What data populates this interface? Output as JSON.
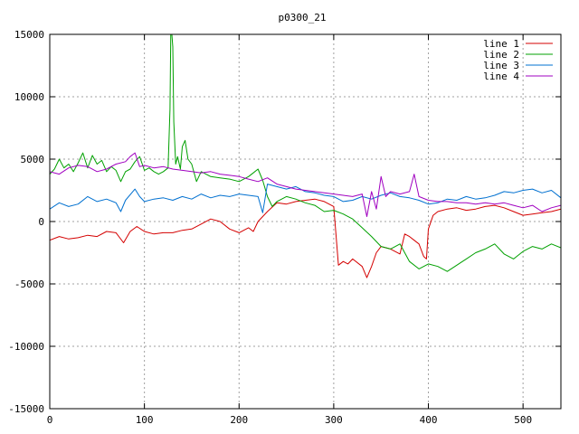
{
  "chart_data": {
    "type": "line",
    "title": "p0300_21",
    "xlabel": "",
    "ylabel": "",
    "xlim": [
      0,
      540
    ],
    "ylim": [
      -15000,
      15000
    ],
    "x_ticks": [
      "0",
      "100",
      "200",
      "300",
      "400",
      "500"
    ],
    "y_ticks": [
      "15000",
      "10000",
      "5000",
      "0",
      "-5000",
      "-10000",
      "-15000"
    ],
    "grid": true,
    "legend_position": "top-right",
    "series": [
      {
        "name": "line 1",
        "color": "#d40000",
        "x": [
          0,
          10,
          20,
          30,
          40,
          50,
          60,
          70,
          78,
          85,
          92,
          100,
          110,
          120,
          130,
          140,
          150,
          160,
          170,
          180,
          190,
          200,
          210,
          215,
          220,
          225,
          230,
          240,
          250,
          260,
          270,
          280,
          290,
          300,
          305,
          310,
          315,
          320,
          330,
          335,
          340,
          345,
          350,
          360,
          370,
          375,
          380,
          385,
          390,
          395,
          398,
          400,
          405,
          410,
          420,
          430,
          440,
          450,
          460,
          470,
          480,
          490,
          500,
          510,
          520,
          530,
          540
        ],
        "y": [
          -1500,
          -1200,
          -1400,
          -1300,
          -1100,
          -1200,
          -800,
          -900,
          -1700,
          -800,
          -400,
          -800,
          -1000,
          -900,
          -900,
          -700,
          -600,
          -200,
          200,
          0,
          -600,
          -900,
          -500,
          -800,
          0,
          400,
          800,
          1500,
          1400,
          1600,
          1700,
          1800,
          1600,
          1200,
          -3500,
          -3200,
          -3400,
          -3000,
          -3600,
          -4500,
          -3600,
          -2500,
          -2000,
          -2200,
          -2600,
          -1000,
          -1200,
          -1500,
          -1800,
          -2800,
          -3000,
          -600,
          500,
          800,
          1000,
          1100,
          900,
          1000,
          1200,
          1300,
          1100,
          800,
          500,
          600,
          700,
          800,
          1000
        ]
      },
      {
        "name": "line 2",
        "color": "#00a000",
        "x": [
          0,
          5,
          10,
          15,
          20,
          25,
          30,
          35,
          40,
          45,
          50,
          55,
          60,
          65,
          70,
          75,
          80,
          85,
          90,
          95,
          100,
          105,
          110,
          115,
          120,
          125,
          127,
          128,
          130,
          131,
          133,
          135,
          138,
          140,
          143,
          146,
          150,
          155,
          160,
          170,
          180,
          190,
          200,
          210,
          215,
          220,
          225,
          230,
          235,
          240,
          250,
          260,
          270,
          280,
          290,
          300,
          310,
          320,
          330,
          340,
          350,
          360,
          370,
          380,
          390,
          400,
          410,
          420,
          430,
          440,
          450,
          460,
          470,
          480,
          490,
          500,
          510,
          520,
          530,
          540
        ],
        "y": [
          3800,
          4200,
          5000,
          4300,
          4600,
          4000,
          4700,
          5500,
          4300,
          5300,
          4600,
          4900,
          4000,
          4400,
          4100,
          3200,
          4000,
          4200,
          4800,
          5200,
          4100,
          4300,
          4000,
          3800,
          4000,
          4300,
          9000,
          16000,
          14000,
          8000,
          4600,
          5200,
          4200,
          6000,
          6500,
          5000,
          4600,
          3200,
          4000,
          3600,
          3500,
          3400,
          3200,
          3600,
          3900,
          4200,
          3300,
          2000,
          1200,
          1600,
          2000,
          1800,
          1500,
          1300,
          800,
          900,
          600,
          200,
          -500,
          -1200,
          -2000,
          -2200,
          -1800,
          -3200,
          -3800,
          -3400,
          -3600,
          -4000,
          -3500,
          -3000,
          -2500,
          -2200,
          -1800,
          -2600,
          -3000,
          -2400,
          -2000,
          -2200,
          -1800,
          -2100
        ]
      },
      {
        "name": "line 3",
        "color": "#0070d0",
        "x": [
          0,
          10,
          20,
          30,
          40,
          50,
          60,
          70,
          75,
          80,
          90,
          95,
          100,
          110,
          120,
          130,
          140,
          150,
          160,
          170,
          180,
          190,
          200,
          210,
          220,
          225,
          230,
          240,
          250,
          260,
          270,
          280,
          290,
          300,
          310,
          320,
          330,
          340,
          350,
          360,
          370,
          380,
          390,
          400,
          410,
          420,
          430,
          440,
          450,
          460,
          470,
          480,
          490,
          500,
          510,
          520,
          530,
          540
        ],
        "y": [
          1000,
          1500,
          1200,
          1400,
          2000,
          1600,
          1800,
          1500,
          800,
          1700,
          2600,
          2000,
          1600,
          1800,
          1900,
          1700,
          2000,
          1800,
          2200,
          1900,
          2100,
          2000,
          2200,
          2100,
          2000,
          700,
          3000,
          2800,
          2600,
          2800,
          2400,
          2300,
          2100,
          2000,
          1600,
          1700,
          2000,
          1800,
          2100,
          2300,
          2000,
          1900,
          1700,
          1400,
          1500,
          1800,
          1700,
          2000,
          1800,
          1900,
          2100,
          2400,
          2300,
          2500,
          2600,
          2300,
          2500,
          1900
        ]
      },
      {
        "name": "line 4",
        "color": "#a000c0",
        "x": [
          0,
          10,
          20,
          30,
          40,
          50,
          60,
          70,
          80,
          85,
          90,
          95,
          100,
          110,
          120,
          130,
          140,
          150,
          160,
          170,
          180,
          190,
          200,
          210,
          220,
          230,
          240,
          250,
          260,
          270,
          280,
          290,
          300,
          310,
          320,
          330,
          335,
          340,
          345,
          350,
          355,
          360,
          370,
          380,
          385,
          390,
          400,
          410,
          420,
          430,
          440,
          450,
          460,
          470,
          480,
          490,
          500,
          510,
          520,
          530,
          540
        ],
        "y": [
          4000,
          3800,
          4300,
          4500,
          4400,
          4000,
          4200,
          4600,
          4800,
          5200,
          5500,
          4400,
          4500,
          4300,
          4400,
          4200,
          4100,
          4000,
          3900,
          4000,
          3800,
          3700,
          3600,
          3400,
          3200,
          3500,
          3000,
          2800,
          2600,
          2500,
          2400,
          2300,
          2200,
          2100,
          2000,
          2200,
          400,
          2400,
          1000,
          3600,
          2000,
          2400,
          2200,
          2400,
          3800,
          2000,
          1700,
          1600,
          1600,
          1500,
          1500,
          1400,
          1500,
          1400,
          1500,
          1300,
          1100,
          1300,
          800,
          1100,
          1300
        ]
      }
    ]
  }
}
